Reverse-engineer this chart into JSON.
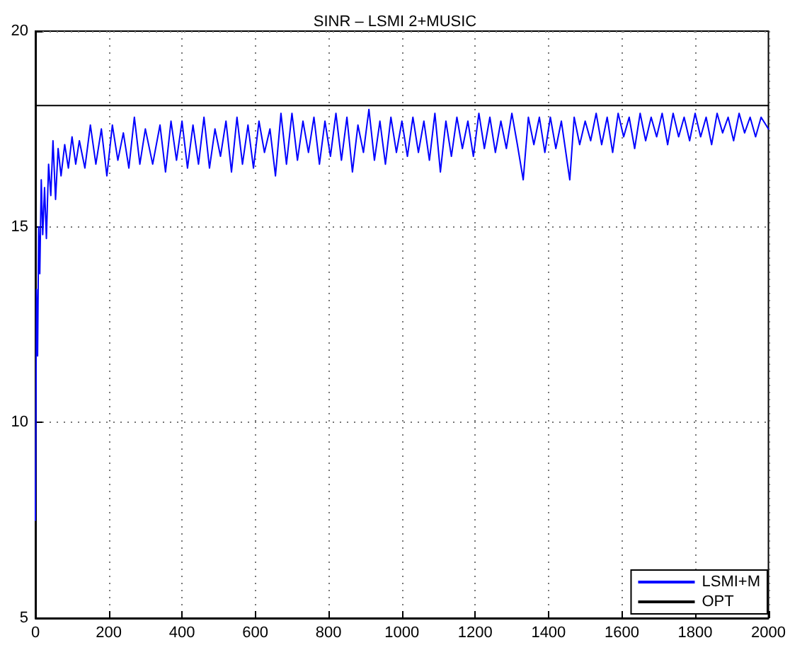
{
  "chart_data": {
    "type": "line",
    "title": "SINR – LSMI 2+MUSIC",
    "xlim": [
      0,
      2000
    ],
    "xticks": [
      0,
      200,
      400,
      600,
      800,
      1000,
      1200,
      1400,
      1600,
      1800,
      2000
    ],
    "ylim": [
      5,
      20
    ],
    "yticks": [
      5,
      10,
      15,
      20
    ],
    "grid": true,
    "legend": "bottom right",
    "marker": "none",
    "line_style": "solid",
    "series": [
      {
        "name": "LSMI+M",
        "color": "#0000ff",
        "x": [
          0,
          3,
          6,
          9,
          12,
          16,
          20,
          25,
          30,
          36,
          42,
          48,
          55,
          62,
          70,
          80,
          90,
          100,
          110,
          120,
          135,
          150,
          165,
          180,
          195,
          210,
          225,
          240,
          255,
          270,
          285,
          300,
          320,
          340,
          355,
          370,
          385,
          400,
          415,
          430,
          445,
          460,
          475,
          490,
          505,
          520,
          535,
          550,
          565,
          580,
          595,
          610,
          625,
          640,
          655,
          670,
          685,
          700,
          715,
          730,
          745,
          760,
          775,
          790,
          805,
          820,
          835,
          850,
          865,
          880,
          895,
          910,
          925,
          940,
          955,
          970,
          985,
          1000,
          1015,
          1030,
          1045,
          1060,
          1075,
          1090,
          1105,
          1120,
          1135,
          1150,
          1165,
          1180,
          1195,
          1210,
          1225,
          1240,
          1255,
          1270,
          1285,
          1300,
          1315,
          1331,
          1345,
          1360,
          1375,
          1390,
          1405,
          1420,
          1435,
          1458,
          1470,
          1485,
          1500,
          1515,
          1530,
          1545,
          1560,
          1575,
          1590,
          1605,
          1620,
          1635,
          1650,
          1665,
          1680,
          1695,
          1710,
          1725,
          1740,
          1755,
          1770,
          1785,
          1800,
          1815,
          1830,
          1845,
          1860,
          1875,
          1890,
          1905,
          1920,
          1935,
          1950,
          1965,
          1980,
          2000
        ],
        "values": [
          7.5,
          13.4,
          11.7,
          15.0,
          13.8,
          16.2,
          14.8,
          16.0,
          14.7,
          16.6,
          15.8,
          17.2,
          15.7,
          17.0,
          16.3,
          17.1,
          16.5,
          17.3,
          16.6,
          17.2,
          16.5,
          17.6,
          16.6,
          17.5,
          16.3,
          17.6,
          16.7,
          17.4,
          16.5,
          17.8,
          16.6,
          17.5,
          16.6,
          17.6,
          16.4,
          17.7,
          16.7,
          17.7,
          16.5,
          17.6,
          16.6,
          17.8,
          16.5,
          17.5,
          16.8,
          17.7,
          16.4,
          17.8,
          16.6,
          17.6,
          16.5,
          17.7,
          16.9,
          17.5,
          16.3,
          17.9,
          16.6,
          17.9,
          16.7,
          17.7,
          16.9,
          17.8,
          16.6,
          17.7,
          16.8,
          17.9,
          16.7,
          17.8,
          16.4,
          17.6,
          16.9,
          18.0,
          16.7,
          17.7,
          16.6,
          17.8,
          16.9,
          17.7,
          16.8,
          17.8,
          16.9,
          17.7,
          16.7,
          17.9,
          16.4,
          17.7,
          16.8,
          17.8,
          17.0,
          17.7,
          16.8,
          17.9,
          17.0,
          17.8,
          16.9,
          17.7,
          17.0,
          17.9,
          17.1,
          16.2,
          17.8,
          17.1,
          17.8,
          16.9,
          17.8,
          17.0,
          17.7,
          16.2,
          17.8,
          17.1,
          17.7,
          17.2,
          17.9,
          17.1,
          17.8,
          16.9,
          17.9,
          17.3,
          17.8,
          17.0,
          17.9,
          17.2,
          17.8,
          17.3,
          17.9,
          17.1,
          17.9,
          17.3,
          17.8,
          17.2,
          17.9,
          17.3,
          17.8,
          17.1,
          17.9,
          17.4,
          17.8,
          17.2,
          17.9,
          17.4,
          17.8,
          17.3,
          17.8,
          17.5
        ]
      },
      {
        "name": "OPT",
        "color": "#000000",
        "x": [
          0,
          2000
        ],
        "values": [
          18.1,
          18.1
        ]
      }
    ]
  }
}
